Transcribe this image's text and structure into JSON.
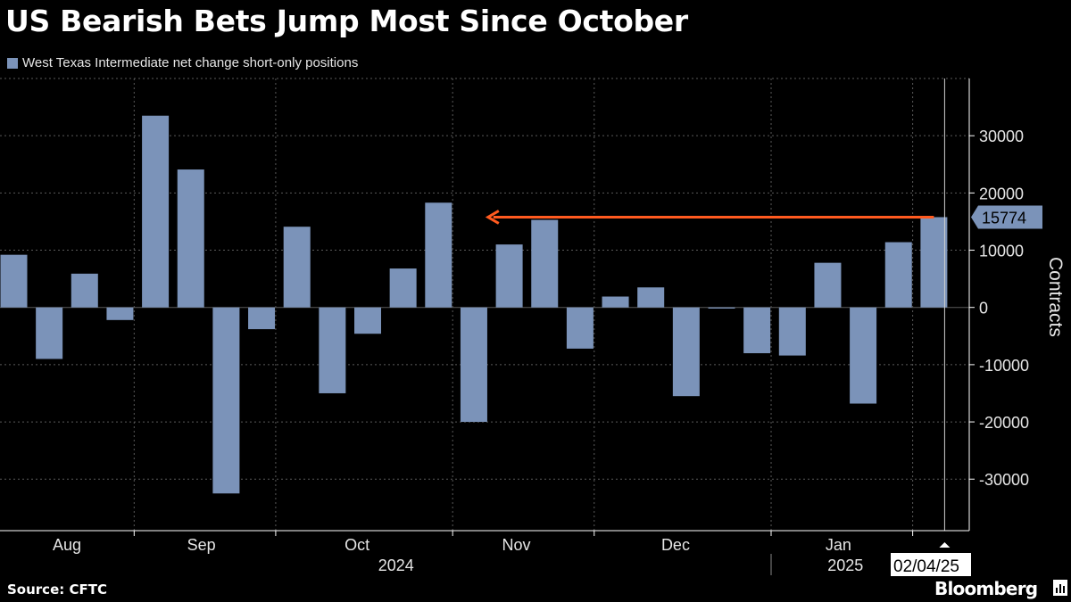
{
  "title": "US Bearish Bets Jump Most Since October",
  "legend": {
    "label": "West Texas Intermediate net change short-only positions",
    "color": "#7b93b9"
  },
  "source": "Source: CFTC",
  "brand": "Bloomberg",
  "brand_icon": "bloomberg-terminal-icon",
  "colors": {
    "bar": "#7b93b9",
    "arrow": "#ff5a1f",
    "grid": "#5a5a5a",
    "axis": "#ffffff",
    "text": "#e6e6e6"
  },
  "chart_data": {
    "type": "bar",
    "series_name": "West Texas Intermediate net change short-only positions",
    "values": [
      9200,
      -9000,
      5900,
      -2200,
      33500,
      24100,
      -32500,
      -3800,
      14100,
      -15000,
      -4600,
      6800,
      18300,
      -20000,
      11000,
      15300,
      -7200,
      1900,
      3500,
      -15500,
      -200,
      -8000,
      -8400,
      7800,
      -16800,
      11400,
      15774
    ],
    "ylabel": "Contracts",
    "ylim": [
      -39000,
      40000
    ],
    "yticks": [
      30000,
      20000,
      10000,
      0,
      -10000,
      -20000,
      -30000
    ],
    "months": [
      {
        "label": "Aug",
        "center": 1.5
      },
      {
        "label": "Sep",
        "center": 5.3
      },
      {
        "label": "Oct",
        "center": 9.7
      },
      {
        "label": "Nov",
        "center": 14.2
      },
      {
        "label": "Dec",
        "center": 18.7
      },
      {
        "label": "Jan",
        "center": 23.3
      }
    ],
    "month_boundaries": [
      3.4,
      7.4,
      12.4,
      16.4,
      21.4,
      25.4
    ],
    "years": [
      {
        "label": "2024",
        "center": 10.8
      },
      {
        "label": "2025",
        "center": 23.5
      }
    ],
    "year_boundary": 21.4,
    "highlight": {
      "label": "15774",
      "value": 15774,
      "arrow_from_index": 26,
      "arrow_to_index": 13.4
    },
    "date_label": "02/04/25"
  }
}
